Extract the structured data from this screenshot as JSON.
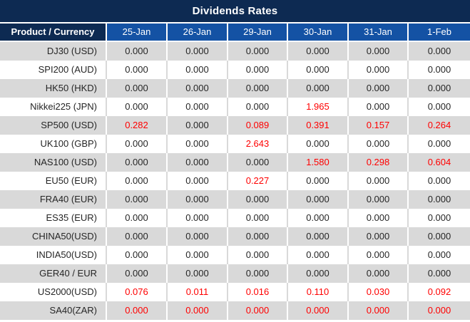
{
  "title": "Dividends Rates",
  "colors": {
    "navy": "#0d2a52",
    "header_blue": "#1452a4",
    "row_alt_gray": "#d9d9d9",
    "text_dark": "#262626",
    "highlight_red": "#ff0000"
  },
  "table": {
    "product_header": "Product / Currency",
    "date_headers": [
      "25-Jan",
      "26-Jan",
      "29-Jan",
      "30-Jan",
      "31-Jan",
      "1-Feb"
    ],
    "rows": [
      {
        "product": "DJ30 (USD)",
        "values": [
          "0.000",
          "0.000",
          "0.000",
          "0.000",
          "0.000",
          "0.000"
        ],
        "red": [
          false,
          false,
          false,
          false,
          false,
          false
        ]
      },
      {
        "product": "SPI200 (AUD)",
        "values": [
          "0.000",
          "0.000",
          "0.000",
          "0.000",
          "0.000",
          "0.000"
        ],
        "red": [
          false,
          false,
          false,
          false,
          false,
          false
        ]
      },
      {
        "product": "HK50 (HKD)",
        "values": [
          "0.000",
          "0.000",
          "0.000",
          "0.000",
          "0.000",
          "0.000"
        ],
        "red": [
          false,
          false,
          false,
          false,
          false,
          false
        ]
      },
      {
        "product": "Nikkei225 (JPN)",
        "values": [
          "0.000",
          "0.000",
          "0.000",
          "1.965",
          "0.000",
          "0.000"
        ],
        "red": [
          false,
          false,
          false,
          true,
          false,
          false
        ]
      },
      {
        "product": "SP500 (USD)",
        "values": [
          "0.282",
          "0.000",
          "0.089",
          "0.391",
          "0.157",
          "0.264"
        ],
        "red": [
          true,
          false,
          true,
          true,
          true,
          true
        ]
      },
      {
        "product": "UK100 (GBP)",
        "values": [
          "0.000",
          "0.000",
          "2.643",
          "0.000",
          "0.000",
          "0.000"
        ],
        "red": [
          false,
          false,
          true,
          false,
          false,
          false
        ]
      },
      {
        "product": "NAS100 (USD)",
        "values": [
          "0.000",
          "0.000",
          "0.000",
          "1.580",
          "0.298",
          "0.604"
        ],
        "red": [
          false,
          false,
          false,
          true,
          true,
          true
        ]
      },
      {
        "product": "EU50 (EUR)",
        "values": [
          "0.000",
          "0.000",
          "0.227",
          "0.000",
          "0.000",
          "0.000"
        ],
        "red": [
          false,
          false,
          true,
          false,
          false,
          false
        ]
      },
      {
        "product": "FRA40 (EUR)",
        "values": [
          "0.000",
          "0.000",
          "0.000",
          "0.000",
          "0.000",
          "0.000"
        ],
        "red": [
          false,
          false,
          false,
          false,
          false,
          false
        ]
      },
      {
        "product": "ES35 (EUR)",
        "values": [
          "0.000",
          "0.000",
          "0.000",
          "0.000",
          "0.000",
          "0.000"
        ],
        "red": [
          false,
          false,
          false,
          false,
          false,
          false
        ]
      },
      {
        "product": "CHINA50(USD)",
        "values": [
          "0.000",
          "0.000",
          "0.000",
          "0.000",
          "0.000",
          "0.000"
        ],
        "red": [
          false,
          false,
          false,
          false,
          false,
          false
        ]
      },
      {
        "product": "INDIA50(USD)",
        "values": [
          "0.000",
          "0.000",
          "0.000",
          "0.000",
          "0.000",
          "0.000"
        ],
        "red": [
          false,
          false,
          false,
          false,
          false,
          false
        ]
      },
      {
        "product": "GER40 / EUR",
        "values": [
          "0.000",
          "0.000",
          "0.000",
          "0.000",
          "0.000",
          "0.000"
        ],
        "red": [
          false,
          false,
          false,
          false,
          false,
          false
        ]
      },
      {
        "product": "US2000(USD)",
        "values": [
          "0.076",
          "0.011",
          "0.016",
          "0.110",
          "0.030",
          "0.092"
        ],
        "red": [
          true,
          true,
          true,
          true,
          true,
          true
        ]
      },
      {
        "product": "SA40(ZAR)",
        "values": [
          "0.000",
          "0.000",
          "0.000",
          "0.000",
          "0.000",
          "0.000"
        ],
        "red": [
          true,
          true,
          true,
          true,
          true,
          true
        ]
      }
    ]
  }
}
